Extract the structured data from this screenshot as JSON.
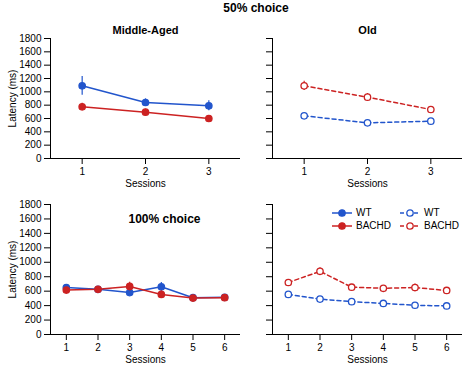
{
  "chart_data": [
    {
      "type": "line",
      "title": "Middle-Aged",
      "annotation": "50% choice",
      "x": [
        1,
        2,
        3
      ],
      "series": [
        {
          "name": "WT",
          "color": "#2255cc",
          "marker": "circle",
          "line_style": "solid",
          "values": [
            1090,
            840,
            790
          ],
          "errors": [
            140,
            55,
            75
          ]
        },
        {
          "name": "BACHD",
          "color": "#cc2222",
          "marker": "circle",
          "line_style": "solid",
          "values": [
            775,
            695,
            600
          ],
          "errors": [
            55,
            45,
            45
          ]
        }
      ],
      "xlabel": "Sessions",
      "ylabel": "Latency (ms)",
      "xlim": [
        0.5,
        3.5
      ],
      "xticks": [
        1,
        2,
        3
      ],
      "ylim": [
        0,
        1800
      ],
      "yticks": [
        0,
        200,
        400,
        600,
        800,
        1000,
        1200,
        1400,
        1600,
        1800
      ]
    },
    {
      "type": "line",
      "title": "Old",
      "x": [
        1,
        2,
        3
      ],
      "series": [
        {
          "name": "WT",
          "color": "#2255cc",
          "marker": "open_circle",
          "line_style": "dashed",
          "values": [
            640,
            535,
            560
          ],
          "errors": [
            35,
            25,
            25
          ]
        },
        {
          "name": "BACHD",
          "color": "#cc2222",
          "marker": "open_circle",
          "line_style": "dashed",
          "values": [
            1090,
            920,
            735
          ],
          "errors": [
            70,
            55,
            45
          ]
        }
      ],
      "xlabel": "Sessions",
      "tick_labels": "x",
      "xlim": [
        0.5,
        3.5
      ],
      "xticks": [
        1,
        2,
        3
      ],
      "ylim": [
        0,
        1800
      ],
      "yticks": [
        0,
        200,
        400,
        600,
        800,
        1000,
        1200,
        1400,
        1600,
        1800
      ]
    },
    {
      "type": "line",
      "annotation": "100% choice",
      "x": [
        1,
        2,
        3,
        4,
        5,
        6
      ],
      "series": [
        {
          "name": "WT",
          "color": "#2255cc",
          "marker": "circle",
          "line_style": "solid",
          "values": [
            650,
            625,
            580,
            660,
            510,
            515
          ],
          "errors": [
            38,
            28,
            38,
            60,
            28,
            38
          ]
        },
        {
          "name": "BACHD",
          "color": "#cc2222",
          "marker": "circle",
          "line_style": "solid",
          "values": [
            615,
            625,
            665,
            555,
            505,
            510
          ],
          "errors": [
            28,
            35,
            60,
            48,
            28,
            28
          ]
        }
      ],
      "xlabel": "Sessions",
      "ylabel": "Latency (ms)",
      "xlim": [
        0.5,
        6.5
      ],
      "xticks": [
        1,
        2,
        3,
        4,
        5,
        6
      ],
      "ylim": [
        0,
        1800
      ],
      "yticks": [
        0,
        200,
        400,
        600,
        800,
        1000,
        1200,
        1400,
        1600,
        1800
      ]
    },
    {
      "type": "line",
      "x": [
        1,
        2,
        3,
        4,
        5,
        6
      ],
      "series": [
        {
          "name": "WT",
          "color": "#2255cc",
          "marker": "open_circle",
          "line_style": "dashed",
          "values": [
            555,
            490,
            455,
            430,
            405,
            395
          ],
          "errors": [
            28,
            28,
            18,
            22,
            18,
            18
          ]
        },
        {
          "name": "BACHD",
          "color": "#cc2222",
          "marker": "open_circle",
          "line_style": "dashed",
          "values": [
            720,
            875,
            655,
            640,
            650,
            610
          ],
          "errors": [
            38,
            48,
            38,
            32,
            48,
            32
          ]
        }
      ],
      "xlabel": "Sessions",
      "tick_labels": "x",
      "legend": "upper right",
      "xlim": [
        0.5,
        6.5
      ],
      "xticks": [
        1,
        2,
        3,
        4,
        5,
        6
      ],
      "ylim": [
        0,
        1800
      ],
      "yticks": [
        0,
        200,
        400,
        600,
        800,
        1000,
        1200,
        1400,
        1600,
        1800
      ]
    }
  ]
}
